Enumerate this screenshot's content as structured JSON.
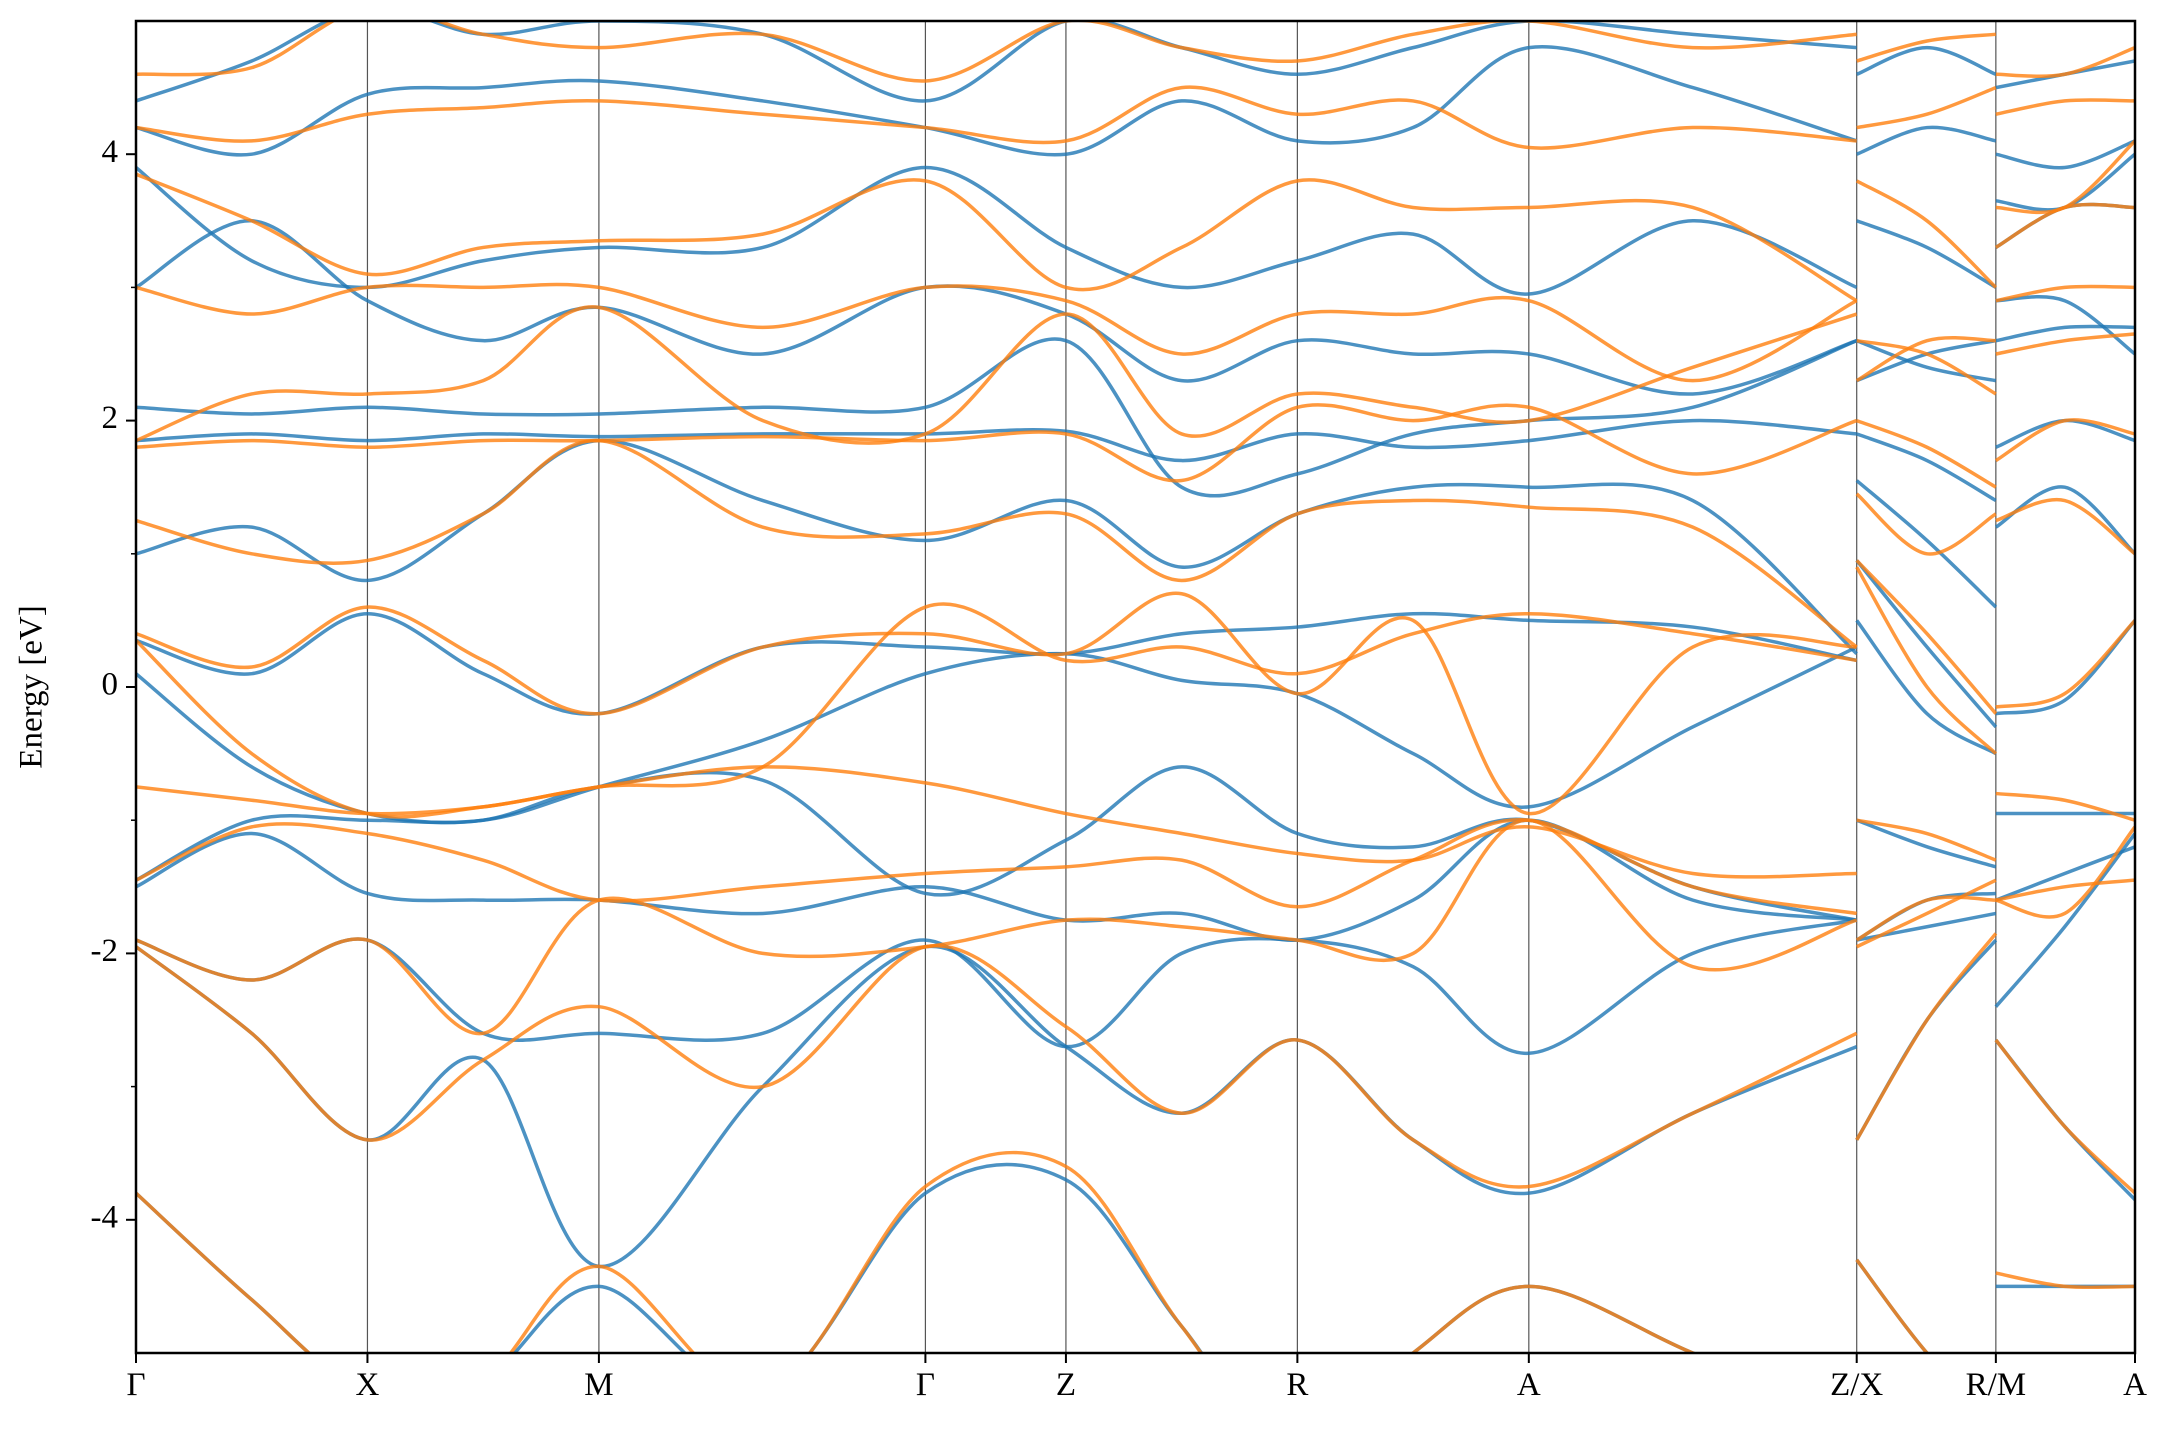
{
  "chart_data": {
    "type": "line",
    "ylabel": "Energy [eV]",
    "x": [
      0,
      0.84,
      1.68,
      2.52,
      3.36,
      4.55,
      5.73,
      6.75,
      7.59,
      8.43,
      9.27,
      10.11,
      11.3,
      12.49,
      12.49,
      12.49,
      13.0,
      13.5,
      13.5,
      13.5,
      14.0,
      14.51
    ],
    "xlim": [
      0,
      14.51
    ],
    "xticks": [
      {
        "value": 0,
        "label": "Γ"
      },
      {
        "value": 1.68,
        "label": "X"
      },
      {
        "value": 3.36,
        "label": "M"
      },
      {
        "value": 5.73,
        "label": "Γ"
      },
      {
        "value": 6.75,
        "label": "Z"
      },
      {
        "value": 8.43,
        "label": "R"
      },
      {
        "value": 10.11,
        "label": "A"
      },
      {
        "value": 12.49,
        "label": "Z/X"
      },
      {
        "value": 13.5,
        "label": "R/M"
      },
      {
        "value": 14.51,
        "label": "A"
      }
    ],
    "ylim": [
      -5,
      5
    ],
    "yticks": [
      -4,
      -2,
      0,
      2,
      4
    ],
    "yminorticks": [
      -3,
      -1,
      1,
      3
    ],
    "grid": true,
    "series": [
      {
        "color": "#1f77b4",
        "bands": [
          [
            -3.8,
            -4.6,
            -5.3,
            -5.2,
            -4.5,
            -5.3,
            -3.8,
            -3.7,
            -4.8,
            -5.8,
            -5.0,
            -4.5,
            -5.0,
            -5.5,
            null,
            -4.3,
            -5.0,
            -5.5,
            null,
            -4.5,
            -4.5,
            -4.5
          ],
          [
            -1.95,
            -2.6,
            -3.4,
            -2.8,
            -4.35,
            -3.0,
            -1.95,
            -2.7,
            -3.2,
            -2.65,
            -3.4,
            -3.8,
            -3.2,
            -2.7,
            null,
            -3.4,
            -2.5,
            -1.9,
            null,
            -2.65,
            -3.3,
            -3.85
          ],
          [
            -1.9,
            -2.2,
            -1.9,
            -2.6,
            -2.6,
            -2.6,
            -1.9,
            -2.7,
            -2.0,
            -1.9,
            -2.1,
            -2.75,
            -2.0,
            -1.75,
            null,
            -1.9,
            -1.8,
            -1.7,
            null,
            -2.4,
            -1.8,
            -1.1
          ],
          [
            -1.5,
            -1.1,
            -1.55,
            -1.6,
            -1.6,
            -1.7,
            -1.5,
            -1.75,
            -1.7,
            -1.9,
            -1.6,
            -1.0,
            -1.6,
            -1.75,
            null,
            -1.0,
            -1.2,
            -1.35,
            null,
            -1.6,
            -1.4,
            -1.2
          ],
          [
            -1.45,
            -1.0,
            -1.0,
            -1.0,
            -0.75,
            -0.7,
            -1.55,
            -1.15,
            -0.6,
            -1.1,
            -1.2,
            -1.0,
            -1.5,
            -1.75,
            null,
            -1.9,
            -1.6,
            -1.55,
            null,
            -0.95,
            -0.95,
            -0.95
          ],
          [
            0.1,
            -0.6,
            -0.95,
            -1.0,
            -0.75,
            -0.4,
            0.1,
            0.25,
            0.05,
            -0.05,
            -0.5,
            -0.9,
            -0.3,
            0.3,
            null,
            0.5,
            -0.2,
            -0.5,
            null,
            -0.2,
            -0.1,
            0.5
          ],
          [
            0.35,
            0.1,
            0.55,
            0.1,
            -0.2,
            0.3,
            0.3,
            0.25,
            0.4,
            0.45,
            0.55,
            0.5,
            0.45,
            0.2,
            null,
            0.95,
            0.3,
            -0.3,
            null,
            1.2,
            1.5,
            1.0
          ],
          [
            1.0,
            1.2,
            0.8,
            1.3,
            1.85,
            1.4,
            1.1,
            1.4,
            0.9,
            1.3,
            1.5,
            1.5,
            1.4,
            0.25,
            null,
            1.55,
            1.1,
            0.6,
            null,
            1.8,
            2.0,
            1.85
          ],
          [
            1.85,
            1.9,
            1.85,
            1.9,
            1.88,
            1.9,
            1.9,
            1.92,
            1.7,
            1.9,
            1.8,
            1.85,
            2.0,
            1.9,
            null,
            1.9,
            1.7,
            1.4,
            null,
            2.6,
            2.7,
            2.7
          ],
          [
            2.1,
            2.05,
            2.1,
            2.05,
            2.05,
            2.1,
            2.1,
            2.6,
            1.5,
            1.6,
            1.9,
            2.0,
            2.1,
            2.6,
            null,
            2.3,
            2.5,
            2.6,
            null,
            2.9,
            2.9,
            2.5
          ],
          [
            3.0,
            3.5,
            2.9,
            2.6,
            2.85,
            2.5,
            3.0,
            2.8,
            2.3,
            2.6,
            2.5,
            2.5,
            2.2,
            2.6,
            null,
            2.6,
            2.4,
            2.3,
            null,
            3.3,
            3.6,
            3.6
          ],
          [
            3.9,
            3.2,
            3.0,
            3.2,
            3.3,
            3.3,
            3.9,
            3.3,
            3.0,
            3.2,
            3.4,
            2.95,
            3.5,
            3.0,
            null,
            3.5,
            3.3,
            3.0,
            null,
            3.65,
            3.6,
            4.0
          ],
          [
            4.2,
            4.0,
            4.45,
            4.5,
            4.55,
            4.4,
            4.2,
            4.0,
            4.4,
            4.1,
            4.2,
            4.8,
            4.5,
            4.1,
            null,
            4.0,
            4.2,
            4.1,
            null,
            4.0,
            3.9,
            4.1
          ],
          [
            4.4,
            4.7,
            5.1,
            4.9,
            5.0,
            4.9,
            4.4,
            5.0,
            4.8,
            4.6,
            4.8,
            5.0,
            4.9,
            4.8,
            null,
            4.6,
            4.8,
            4.6,
            null,
            4.5,
            4.6,
            4.7
          ]
        ]
      },
      {
        "color": "#ff7f0e",
        "bands": [
          [
            -3.8,
            -4.6,
            -5.3,
            -5.2,
            -4.35,
            -5.3,
            -3.75,
            -3.6,
            -4.8,
            -5.8,
            -5.0,
            -4.5,
            -5.0,
            -5.5,
            null,
            -4.3,
            -5.0,
            -5.5,
            null,
            -4.4,
            -4.5,
            -4.5
          ],
          [
            -1.95,
            -2.6,
            -3.4,
            -2.8,
            -2.4,
            -3.0,
            -1.95,
            -2.55,
            -3.2,
            -2.65,
            -3.4,
            -3.75,
            -3.2,
            -2.6,
            null,
            -3.4,
            -2.5,
            -1.85,
            null,
            -2.65,
            -3.3,
            -3.8
          ],
          [
            -1.9,
            -2.2,
            -1.9,
            -2.6,
            -1.6,
            -2.0,
            -1.95,
            -1.75,
            -1.8,
            -1.9,
            -2.0,
            -1.0,
            -2.1,
            -1.75,
            null,
            -1.9,
            -1.6,
            -1.6,
            null,
            -1.6,
            -1.7,
            -1.05
          ],
          [
            -1.45,
            -1.05,
            -1.1,
            -1.3,
            -1.6,
            -1.5,
            -1.4,
            -1.35,
            -1.3,
            -1.65,
            -1.3,
            -1.0,
            -1.5,
            -1.7,
            null,
            -1.0,
            -1.1,
            -1.3,
            null,
            -0.8,
            -0.85,
            -1.0
          ],
          [
            -0.75,
            -0.85,
            -0.95,
            -0.9,
            -0.75,
            -0.6,
            -0.72,
            -0.95,
            -1.1,
            -1.25,
            -1.3,
            -1.05,
            -1.4,
            -1.4,
            null,
            -1.95,
            -1.7,
            -1.45,
            null,
            -1.6,
            -1.5,
            -1.45
          ],
          [
            0.35,
            -0.5,
            -0.95,
            -0.9,
            -0.75,
            -0.6,
            0.6,
            0.2,
            0.3,
            0.1,
            0.4,
            0.55,
            0.4,
            0.2,
            null,
            0.9,
            0.0,
            -0.5,
            null,
            -0.15,
            -0.05,
            0.5
          ],
          [
            0.4,
            0.15,
            0.6,
            0.2,
            -0.2,
            0.3,
            0.4,
            0.25,
            0.7,
            -0.05,
            0.5,
            -0.95,
            0.3,
            0.3,
            null,
            0.95,
            0.4,
            -0.2,
            null,
            1.25,
            1.4,
            1.0
          ],
          [
            1.25,
            1.0,
            0.95,
            1.3,
            1.85,
            1.2,
            1.15,
            1.3,
            0.8,
            1.3,
            1.4,
            1.35,
            1.2,
            0.3,
            null,
            1.45,
            1.0,
            1.3,
            null,
            1.7,
            2.0,
            1.9
          ],
          [
            1.8,
            1.85,
            1.8,
            1.85,
            1.85,
            1.88,
            1.85,
            1.9,
            1.55,
            2.1,
            2.0,
            2.1,
            1.6,
            2.0,
            null,
            2.0,
            1.8,
            1.5,
            null,
            2.5,
            2.6,
            2.65
          ],
          [
            1.85,
            2.2,
            2.2,
            2.3,
            2.85,
            2.0,
            1.9,
            2.8,
            1.9,
            2.2,
            2.1,
            2.0,
            2.4,
            2.8,
            null,
            2.3,
            2.6,
            2.6,
            null,
            2.9,
            3.0,
            3.0
          ],
          [
            3.0,
            2.8,
            3.0,
            3.0,
            3.0,
            2.7,
            3.0,
            2.9,
            2.5,
            2.8,
            2.8,
            2.9,
            2.3,
            2.9,
            null,
            2.6,
            2.5,
            2.2,
            null,
            3.3,
            3.6,
            3.6
          ],
          [
            3.85,
            3.5,
            3.1,
            3.3,
            3.35,
            3.4,
            3.8,
            3.0,
            3.3,
            3.8,
            3.6,
            3.6,
            3.6,
            2.9,
            null,
            3.8,
            3.5,
            3.0,
            null,
            3.6,
            3.6,
            4.1
          ],
          [
            4.2,
            4.1,
            4.3,
            4.35,
            4.4,
            4.3,
            4.2,
            4.1,
            4.5,
            4.3,
            4.4,
            4.05,
            4.2,
            4.1,
            null,
            4.2,
            4.3,
            4.5,
            null,
            4.3,
            4.4,
            4.4
          ],
          [
            4.6,
            4.65,
            5.1,
            4.9,
            4.8,
            4.9,
            4.55,
            5.0,
            4.8,
            4.7,
            4.9,
            5.0,
            4.8,
            4.9,
            null,
            4.7,
            4.85,
            4.9,
            null,
            4.6,
            4.6,
            4.8
          ]
        ]
      }
    ]
  }
}
